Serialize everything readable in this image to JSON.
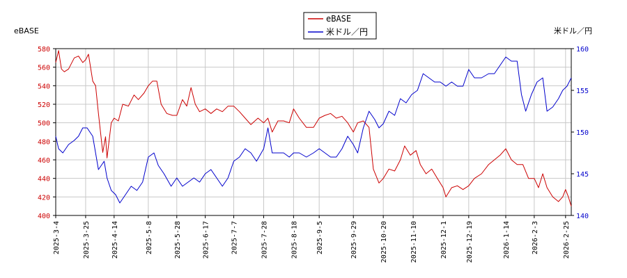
{
  "chart_data": {
    "type": "line",
    "left_axis_label": "eBASE",
    "right_axis_label": "米ドル／円",
    "left_ylim": [
      400,
      580
    ],
    "left_yticks": [
      400,
      420,
      440,
      460,
      480,
      500,
      520,
      540,
      560,
      580
    ],
    "right_ylim": [
      140,
      160
    ],
    "right_yticks": [
      140,
      145,
      150,
      155,
      160
    ],
    "x_range": [
      "2025-03-04",
      "2026-03-01"
    ],
    "x_ticks": [
      "2025-3-4",
      "2025-3-25",
      "2025-4-14",
      "2025-5-8",
      "2025-5-28",
      "2025-6-17",
      "2025-7-7",
      "2025-7-28",
      "2025-8-18",
      "2025-9-5",
      "2025-9-29",
      "2025-10-20",
      "2025-11-10",
      "2025-12-1",
      "2025-12-19",
      "2026-1-14",
      "2026-2-3",
      "2026-2-25"
    ],
    "grid": true,
    "legend_position": "top-center",
    "series": [
      {
        "name": "eBASE",
        "color": "#cc0000",
        "axis": "left",
        "points": [
          [
            "2025-03-04",
            565
          ],
          [
            "2025-03-06",
            578
          ],
          [
            "2025-03-08",
            558
          ],
          [
            "2025-03-10",
            555
          ],
          [
            "2025-03-13",
            558
          ],
          [
            "2025-03-17",
            570
          ],
          [
            "2025-03-20",
            572
          ],
          [
            "2025-03-23",
            565
          ],
          [
            "2025-03-25",
            568
          ],
          [
            "2025-03-27",
            574
          ],
          [
            "2025-03-30",
            545
          ],
          [
            "2025-04-01",
            540
          ],
          [
            "2025-04-03",
            510
          ],
          [
            "2025-04-06",
            468
          ],
          [
            "2025-04-08",
            485
          ],
          [
            "2025-04-09",
            462
          ],
          [
            "2025-04-12",
            500
          ],
          [
            "2025-04-14",
            505
          ],
          [
            "2025-04-17",
            502
          ],
          [
            "2025-04-20",
            520
          ],
          [
            "2025-04-24",
            518
          ],
          [
            "2025-04-28",
            530
          ],
          [
            "2025-05-01",
            525
          ],
          [
            "2025-05-05",
            532
          ],
          [
            "2025-05-08",
            540
          ],
          [
            "2025-05-11",
            545
          ],
          [
            "2025-05-14",
            545
          ],
          [
            "2025-05-17",
            520
          ],
          [
            "2025-05-21",
            510
          ],
          [
            "2025-05-25",
            508
          ],
          [
            "2025-05-28",
            508
          ],
          [
            "2025-06-01",
            525
          ],
          [
            "2025-06-04",
            518
          ],
          [
            "2025-06-07",
            538
          ],
          [
            "2025-06-10",
            520
          ],
          [
            "2025-06-13",
            512
          ],
          [
            "2025-06-17",
            515
          ],
          [
            "2025-06-21",
            510
          ],
          [
            "2025-06-25",
            515
          ],
          [
            "2025-06-29",
            512
          ],
          [
            "2025-07-03",
            518
          ],
          [
            "2025-07-07",
            518
          ],
          [
            "2025-07-11",
            512
          ],
          [
            "2025-07-15",
            505
          ],
          [
            "2025-07-19",
            498
          ],
          [
            "2025-07-24",
            505
          ],
          [
            "2025-07-28",
            500
          ],
          [
            "2025-07-31",
            505
          ],
          [
            "2025-08-03",
            490
          ],
          [
            "2025-08-07",
            502
          ],
          [
            "2025-08-11",
            502
          ],
          [
            "2025-08-15",
            500
          ],
          [
            "2025-08-18",
            515
          ],
          [
            "2025-08-22",
            505
          ],
          [
            "2025-08-27",
            495
          ],
          [
            "2025-09-01",
            495
          ],
          [
            "2025-09-05",
            505
          ],
          [
            "2025-09-09",
            508
          ],
          [
            "2025-09-13",
            510
          ],
          [
            "2025-09-17",
            505
          ],
          [
            "2025-09-21",
            507
          ],
          [
            "2025-09-25",
            500
          ],
          [
            "2025-09-29",
            490
          ],
          [
            "2025-10-02",
            500
          ],
          [
            "2025-10-06",
            502
          ],
          [
            "2025-10-10",
            495
          ],
          [
            "2025-10-13",
            450
          ],
          [
            "2025-10-17",
            435
          ],
          [
            "2025-10-20",
            440
          ],
          [
            "2025-10-24",
            450
          ],
          [
            "2025-10-28",
            448
          ],
          [
            "2025-11-01",
            460
          ],
          [
            "2025-11-04",
            475
          ],
          [
            "2025-11-08",
            465
          ],
          [
            "2025-11-12",
            470
          ],
          [
            "2025-11-15",
            455
          ],
          [
            "2025-11-19",
            445
          ],
          [
            "2025-11-23",
            450
          ],
          [
            "2025-11-27",
            440
          ],
          [
            "2025-12-01",
            430
          ],
          [
            "2025-12-03",
            420
          ],
          [
            "2025-12-07",
            430
          ],
          [
            "2025-12-11",
            432
          ],
          [
            "2025-12-15",
            428
          ],
          [
            "2025-12-19",
            432
          ],
          [
            "2025-12-23",
            440
          ],
          [
            "2025-12-28",
            445
          ],
          [
            "2026-01-02",
            455
          ],
          [
            "2026-01-06",
            460
          ],
          [
            "2026-01-10",
            465
          ],
          [
            "2026-01-14",
            472
          ],
          [
            "2026-01-18",
            460
          ],
          [
            "2026-01-22",
            455
          ],
          [
            "2026-01-26",
            455
          ],
          [
            "2026-01-30",
            440
          ],
          [
            "2026-02-03",
            440
          ],
          [
            "2026-02-06",
            430
          ],
          [
            "2026-02-09",
            445
          ],
          [
            "2026-02-12",
            430
          ],
          [
            "2026-02-16",
            420
          ],
          [
            "2026-02-20",
            415
          ],
          [
            "2026-02-23",
            420
          ],
          [
            "2026-02-25",
            428
          ],
          [
            "2026-02-27",
            420
          ],
          [
            "2026-03-01",
            410
          ]
        ]
      },
      {
        "name": "米ドル／円",
        "color": "#0000cc",
        "axis": "right",
        "points": [
          [
            "2025-03-04",
            149.5
          ],
          [
            "2025-03-06",
            148.0
          ],
          [
            "2025-03-09",
            147.5
          ],
          [
            "2025-03-13",
            148.5
          ],
          [
            "2025-03-17",
            149.0
          ],
          [
            "2025-03-20",
            149.5
          ],
          [
            "2025-03-23",
            150.5
          ],
          [
            "2025-03-26",
            150.5
          ],
          [
            "2025-03-30",
            149.5
          ],
          [
            "2025-04-03",
            145.5
          ],
          [
            "2025-04-07",
            146.5
          ],
          [
            "2025-04-09",
            144.5
          ],
          [
            "2025-04-12",
            143.0
          ],
          [
            "2025-04-15",
            142.5
          ],
          [
            "2025-04-18",
            141.5
          ],
          [
            "2025-04-22",
            142.5
          ],
          [
            "2025-04-26",
            143.5
          ],
          [
            "2025-04-30",
            143.0
          ],
          [
            "2025-05-04",
            144.0
          ],
          [
            "2025-05-08",
            147.0
          ],
          [
            "2025-05-12",
            147.5
          ],
          [
            "2025-05-15",
            146.0
          ],
          [
            "2025-05-19",
            145.0
          ],
          [
            "2025-05-24",
            143.5
          ],
          [
            "2025-05-28",
            144.5
          ],
          [
            "2025-06-01",
            143.5
          ],
          [
            "2025-06-05",
            144.0
          ],
          [
            "2025-06-09",
            144.5
          ],
          [
            "2025-06-13",
            144.0
          ],
          [
            "2025-06-17",
            145.0
          ],
          [
            "2025-06-21",
            145.5
          ],
          [
            "2025-06-25",
            144.5
          ],
          [
            "2025-06-29",
            143.5
          ],
          [
            "2025-07-03",
            144.5
          ],
          [
            "2025-07-07",
            146.5
          ],
          [
            "2025-07-11",
            147.0
          ],
          [
            "2025-07-15",
            148.0
          ],
          [
            "2025-07-19",
            147.5
          ],
          [
            "2025-07-23",
            146.5
          ],
          [
            "2025-07-28",
            148.0
          ],
          [
            "2025-07-31",
            150.5
          ],
          [
            "2025-08-03",
            147.5
          ],
          [
            "2025-08-07",
            147.5
          ],
          [
            "2025-08-11",
            147.5
          ],
          [
            "2025-08-15",
            147.0
          ],
          [
            "2025-08-18",
            147.5
          ],
          [
            "2025-08-22",
            147.5
          ],
          [
            "2025-08-27",
            147.0
          ],
          [
            "2025-09-01",
            147.5
          ],
          [
            "2025-09-05",
            148.0
          ],
          [
            "2025-09-09",
            147.5
          ],
          [
            "2025-09-13",
            147.0
          ],
          [
            "2025-09-17",
            147.0
          ],
          [
            "2025-09-21",
            148.0
          ],
          [
            "2025-09-25",
            149.5
          ],
          [
            "2025-09-29",
            148.5
          ],
          [
            "2025-10-02",
            147.5
          ],
          [
            "2025-10-06",
            150.5
          ],
          [
            "2025-10-10",
            152.5
          ],
          [
            "2025-10-14",
            151.5
          ],
          [
            "2025-10-17",
            150.5
          ],
          [
            "2025-10-20",
            151.0
          ],
          [
            "2025-10-24",
            152.5
          ],
          [
            "2025-10-28",
            152.0
          ],
          [
            "2025-11-01",
            154.0
          ],
          [
            "2025-11-05",
            153.5
          ],
          [
            "2025-11-09",
            154.5
          ],
          [
            "2025-11-13",
            155.0
          ],
          [
            "2025-11-17",
            157.0
          ],
          [
            "2025-11-21",
            156.5
          ],
          [
            "2025-11-25",
            156.0
          ],
          [
            "2025-11-29",
            156.0
          ],
          [
            "2025-12-03",
            155.5
          ],
          [
            "2025-12-07",
            156.0
          ],
          [
            "2025-12-11",
            155.5
          ],
          [
            "2025-12-15",
            155.5
          ],
          [
            "2025-12-19",
            157.5
          ],
          [
            "2025-12-23",
            156.5
          ],
          [
            "2025-12-28",
            156.5
          ],
          [
            "2026-01-02",
            157.0
          ],
          [
            "2026-01-06",
            157.0
          ],
          [
            "2026-01-10",
            158.0
          ],
          [
            "2026-01-14",
            159.0
          ],
          [
            "2026-01-18",
            158.5
          ],
          [
            "2026-01-22",
            158.5
          ],
          [
            "2026-01-25",
            154.5
          ],
          [
            "2026-01-28",
            152.5
          ],
          [
            "2026-02-01",
            154.5
          ],
          [
            "2026-02-05",
            156.0
          ],
          [
            "2026-02-09",
            156.5
          ],
          [
            "2026-02-12",
            152.5
          ],
          [
            "2026-02-16",
            153.0
          ],
          [
            "2026-02-20",
            154.0
          ],
          [
            "2026-02-23",
            155.0
          ],
          [
            "2026-02-26",
            155.5
          ],
          [
            "2026-03-01",
            156.5
          ]
        ]
      }
    ]
  }
}
